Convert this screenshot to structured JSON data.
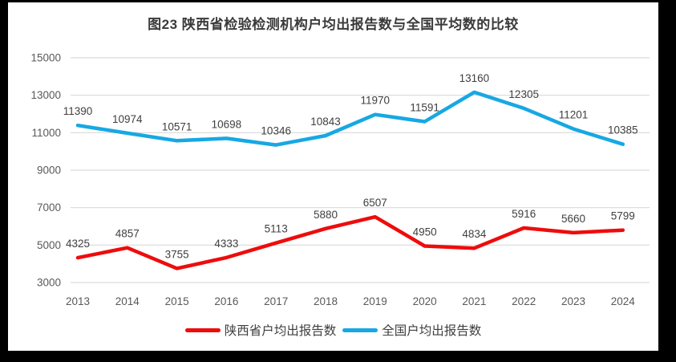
{
  "title": "图23 陕西省检验检测机构户均出报告数与全国平均数的比较",
  "legend": {
    "items": [
      {
        "label": "陕西省户均出报告数",
        "color": "#ee0c0c"
      },
      {
        "label": "全国户均出报告数",
        "color": "#17a8e3"
      }
    ]
  },
  "chart_data": {
    "type": "line",
    "title": "图23 陕西省检验检测机构户均出报告数与全国平均数的比较",
    "categories": [
      "2013",
      "2014",
      "2015",
      "2016",
      "2017",
      "2018",
      "2019",
      "2020",
      "2021",
      "2022",
      "2023",
      "2024"
    ],
    "series": [
      {
        "name": "陕西省户均出报告数",
        "color": "#ee0c0c",
        "values": [
          4325,
          4857,
          3755,
          4333,
          5113,
          5880,
          6507,
          4950,
          4834,
          5916,
          5660,
          5799
        ]
      },
      {
        "name": "全国户均出报告数",
        "color": "#17a8e3",
        "values": [
          11390,
          10974,
          10571,
          10698,
          10346,
          10843,
          11970,
          11591,
          13160,
          12305,
          11201,
          10385
        ]
      }
    ],
    "xlabel": "",
    "ylabel": "",
    "ylim": [
      3000,
      15000
    ],
    "yticks": [
      3000,
      5000,
      7000,
      9000,
      11000,
      13000,
      15000
    ],
    "grid": "horizontal",
    "data_labels": true,
    "legend_position": "bottom"
  },
  "colors": {
    "frame": "#000000",
    "chart_background": "#ffffff",
    "gridline": "#d9d9d9",
    "axis_label": "#595959",
    "data_label": "#404040",
    "title_text": "#3a3a3a"
  }
}
